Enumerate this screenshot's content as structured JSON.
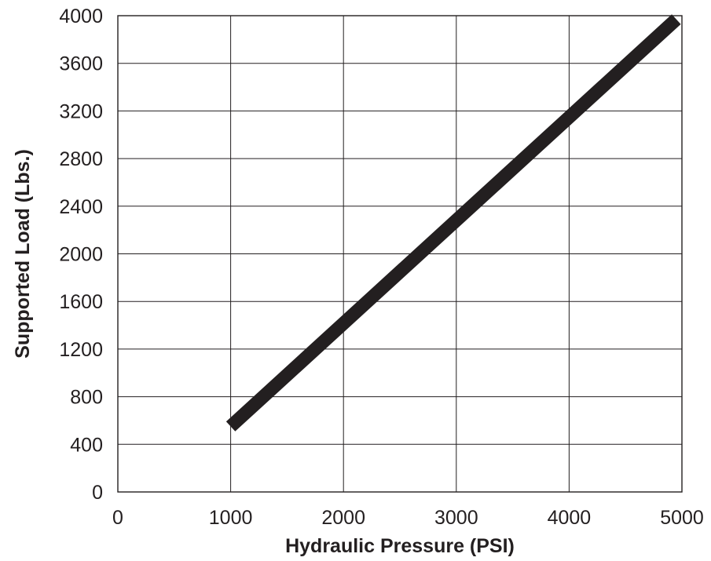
{
  "chart_data": {
    "type": "line",
    "title": "",
    "xlabel": "Hydraulic Pressure (PSI)",
    "ylabel": "Supported Load (Lbs.)",
    "xlim": [
      0,
      5000
    ],
    "ylim": [
      0,
      4000
    ],
    "xticks": [
      0,
      1000,
      2000,
      3000,
      4000,
      5000
    ],
    "yticks": [
      0,
      400,
      800,
      1200,
      1600,
      2000,
      2400,
      2800,
      3200,
      3600,
      4000
    ],
    "grid": true,
    "legend": "none",
    "series": [
      {
        "x": [
          1000,
          4950
        ],
        "y": [
          550,
          3970
        ],
        "color": "#231f20"
      }
    ]
  }
}
